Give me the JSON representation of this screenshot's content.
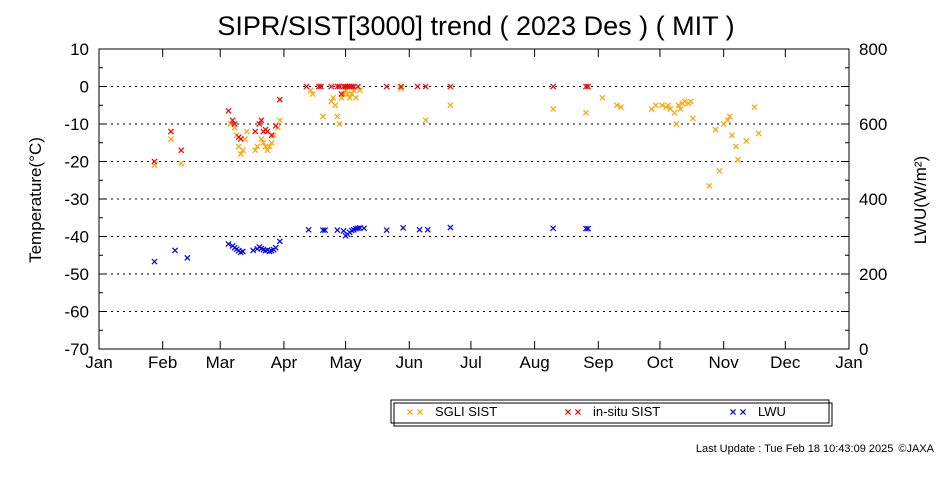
{
  "chart_data": {
    "type": "scatter",
    "title": "SIPR/SIST[3000] trend ( 2023 Des ) ( MIT )",
    "ylabel": "Temperature(°C)",
    "y2label": "LWU(W/m²)",
    "ylim": [
      -70,
      10
    ],
    "y2lim": [
      0,
      800
    ],
    "yticks": [
      "10",
      "0",
      "-10",
      "-20",
      "-30",
      "-40",
      "-50",
      "-60",
      "-70"
    ],
    "y2ticks": [
      "800",
      "600",
      "400",
      "200",
      "0"
    ],
    "months": [
      "Jan",
      "Feb",
      "Mar",
      "Apr",
      "May",
      "Jun",
      "Jul",
      "Aug",
      "Sep",
      "Oct",
      "Nov",
      "Dec",
      "Jan"
    ],
    "grid": "dotted horizontal",
    "legend_position": "bottom",
    "series": [
      {
        "name": "SGLI SIST",
        "color": "#ffa500",
        "axis": "left",
        "points": [
          [
            "2023-01-28",
            -21
          ],
          [
            "2023-02-05",
            -14
          ],
          [
            "2023-02-10",
            -20.5
          ],
          [
            "2023-03-06",
            -10
          ],
          [
            "2023-03-08",
            -11
          ],
          [
            "2023-03-09",
            -13
          ],
          [
            "2023-03-10",
            -16
          ],
          [
            "2023-03-11",
            -18
          ],
          [
            "2023-03-12",
            -17
          ],
          [
            "2023-03-13",
            -14
          ],
          [
            "2023-03-14",
            -12
          ],
          [
            "2023-03-18",
            -17
          ],
          [
            "2023-03-19",
            -16
          ],
          [
            "2023-03-21",
            -14
          ],
          [
            "2023-03-22",
            -15
          ],
          [
            "2023-03-23",
            -16
          ],
          [
            "2023-03-24",
            -17
          ],
          [
            "2023-03-25",
            -16
          ],
          [
            "2023-03-26",
            -15
          ],
          [
            "2023-03-27",
            -13
          ],
          [
            "2023-03-29",
            -11
          ],
          [
            "2023-03-30",
            -9
          ],
          [
            "2023-04-14",
            -1
          ],
          [
            "2023-04-15",
            -2
          ],
          [
            "2023-04-20",
            -8
          ],
          [
            "2023-04-24",
            -4
          ],
          [
            "2023-04-25",
            -3
          ],
          [
            "2023-04-26",
            -5
          ],
          [
            "2023-04-27",
            -8
          ],
          [
            "2023-04-28",
            -10
          ],
          [
            "2023-04-29",
            -3
          ],
          [
            "2023-04-30",
            -2
          ],
          [
            "2023-05-01",
            -1
          ],
          [
            "2023-05-02",
            -2
          ],
          [
            "2023-05-03",
            -3
          ],
          [
            "2023-05-04",
            -2
          ],
          [
            "2023-05-05",
            -1
          ],
          [
            "2023-05-06",
            -3
          ],
          [
            "2023-05-08",
            -1
          ],
          [
            "2023-05-28",
            -0.5
          ],
          [
            "2023-06-09",
            -9
          ],
          [
            "2023-06-21",
            -5
          ],
          [
            "2023-08-10",
            -6
          ],
          [
            "2023-08-26",
            -7
          ],
          [
            "2023-09-03",
            -3
          ],
          [
            "2023-09-10",
            -5
          ],
          [
            "2023-09-12",
            -5.5
          ],
          [
            "2023-09-27",
            -6
          ],
          [
            "2023-09-29",
            -5
          ],
          [
            "2023-10-02",
            -5
          ],
          [
            "2023-10-04",
            -5.5
          ],
          [
            "2023-10-05",
            -5
          ],
          [
            "2023-10-06",
            -6
          ],
          [
            "2023-10-08",
            -7
          ],
          [
            "2023-10-09",
            -10
          ],
          [
            "2023-10-10",
            -5
          ],
          [
            "2023-10-11",
            -6
          ],
          [
            "2023-10-12",
            -4.5
          ],
          [
            "2023-10-13",
            -4
          ],
          [
            "2023-10-15",
            -4.5
          ],
          [
            "2023-10-16",
            -4
          ],
          [
            "2023-10-17",
            -8.5
          ],
          [
            "2023-10-25",
            -26.5
          ],
          [
            "2023-10-28",
            -11.5
          ],
          [
            "2023-10-30",
            -22.5
          ],
          [
            "2023-11-01",
            -10
          ],
          [
            "2023-11-03",
            -9
          ],
          [
            "2023-11-04",
            -8
          ],
          [
            "2023-11-05",
            -13
          ],
          [
            "2023-11-07",
            -16
          ],
          [
            "2023-11-08",
            -19.5
          ],
          [
            "2023-11-12",
            -14.5
          ],
          [
            "2023-11-16",
            -5.5
          ],
          [
            "2023-11-18",
            -12.5
          ]
        ]
      },
      {
        "name": "in-situ SIST",
        "color": "#ff0000",
        "axis": "left",
        "points": [
          [
            "2023-01-28",
            -20
          ],
          [
            "2023-02-05",
            -12
          ],
          [
            "2023-02-10",
            -17
          ],
          [
            "2023-03-05",
            -6.5
          ],
          [
            "2023-03-07",
            -9
          ],
          [
            "2023-03-08",
            -10
          ],
          [
            "2023-03-10",
            -13.5
          ],
          [
            "2023-03-11",
            -14
          ],
          [
            "2023-03-18",
            -12
          ],
          [
            "2023-03-20",
            -10
          ],
          [
            "2023-03-21",
            -9
          ],
          [
            "2023-03-22",
            -12
          ],
          [
            "2023-03-23",
            -11.5
          ],
          [
            "2023-03-24",
            -12
          ],
          [
            "2023-03-26",
            -13
          ],
          [
            "2023-03-28",
            -10.5
          ],
          [
            "2023-03-30",
            -3.5
          ],
          [
            "2023-04-12",
            0
          ],
          [
            "2023-04-18",
            0
          ],
          [
            "2023-04-19",
            0
          ],
          [
            "2023-04-24",
            0
          ],
          [
            "2023-04-27",
            0
          ],
          [
            "2023-04-28",
            0
          ],
          [
            "2023-04-29",
            -2
          ],
          [
            "2023-04-30",
            0
          ],
          [
            "2023-05-01",
            0
          ],
          [
            "2023-05-02",
            0
          ],
          [
            "2023-05-03",
            0
          ],
          [
            "2023-05-04",
            0
          ],
          [
            "2023-05-05",
            0
          ],
          [
            "2023-05-07",
            0
          ],
          [
            "2023-05-21",
            0
          ],
          [
            "2023-05-28",
            0
          ],
          [
            "2023-06-05",
            0
          ],
          [
            "2023-06-09",
            0
          ],
          [
            "2023-06-21",
            0
          ],
          [
            "2023-08-10",
            0
          ],
          [
            "2023-08-26",
            0
          ],
          [
            "2023-08-27",
            0
          ]
        ]
      },
      {
        "name": "LWU",
        "color": "#0000ff",
        "axis": "right",
        "points": [
          [
            "2023-01-28",
            233
          ],
          [
            "2023-02-07",
            263
          ],
          [
            "2023-02-13",
            243
          ],
          [
            "2023-03-05",
            280
          ],
          [
            "2023-03-07",
            275
          ],
          [
            "2023-03-08",
            270
          ],
          [
            "2023-03-09",
            266
          ],
          [
            "2023-03-10",
            262
          ],
          [
            "2023-03-11",
            258
          ],
          [
            "2023-03-12",
            260
          ],
          [
            "2023-03-17",
            263
          ],
          [
            "2023-03-19",
            267
          ],
          [
            "2023-03-20",
            272
          ],
          [
            "2023-03-21",
            268
          ],
          [
            "2023-03-22",
            265
          ],
          [
            "2023-03-23",
            262
          ],
          [
            "2023-03-24",
            264
          ],
          [
            "2023-03-25",
            260
          ],
          [
            "2023-03-26",
            262
          ],
          [
            "2023-03-27",
            265
          ],
          [
            "2023-03-28",
            270
          ],
          [
            "2023-03-30",
            287
          ],
          [
            "2023-04-13",
            318
          ],
          [
            "2023-04-20",
            317
          ],
          [
            "2023-04-21",
            317
          ],
          [
            "2023-04-27",
            317
          ],
          [
            "2023-04-30",
            315
          ],
          [
            "2023-05-01",
            302
          ],
          [
            "2023-05-02",
            306
          ],
          [
            "2023-05-03",
            311
          ],
          [
            "2023-05-04",
            316
          ],
          [
            "2023-05-05",
            318
          ],
          [
            "2023-05-06",
            321
          ],
          [
            "2023-05-07",
            322
          ],
          [
            "2023-05-08",
            323
          ],
          [
            "2023-05-10",
            322
          ],
          [
            "2023-05-21",
            317
          ],
          [
            "2023-05-29",
            323
          ],
          [
            "2023-06-06",
            318
          ],
          [
            "2023-06-10",
            318
          ],
          [
            "2023-06-21",
            324
          ],
          [
            "2023-08-10",
            322
          ],
          [
            "2023-08-26",
            321
          ],
          [
            "2023-08-27",
            321
          ]
        ]
      }
    ]
  },
  "footer": {
    "last_update": "Last Update : Tue Feb 18 10:43:09 2025",
    "credit": "©JAXA"
  }
}
